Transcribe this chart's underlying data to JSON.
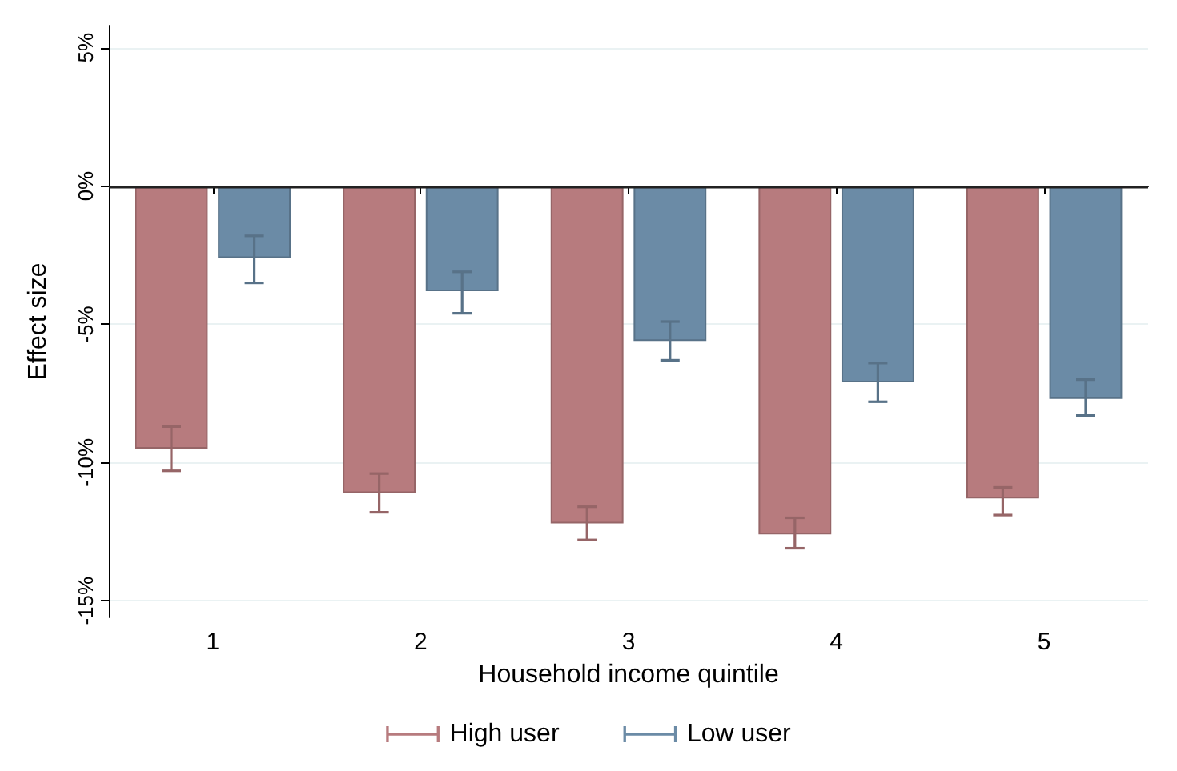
{
  "chart_data": {
    "type": "bar",
    "xlabel": "Household income quintile",
    "ylabel": "Effect size",
    "categories": [
      "1",
      "2",
      "3",
      "4",
      "5"
    ],
    "series": [
      {
        "name": "High user",
        "color": "#b77b7e",
        "values": [
          -9.5,
          -11.1,
          -12.2,
          -12.6,
          -11.3
        ],
        "errors": [
          [
            -10.3,
            -8.7
          ],
          [
            -11.8,
            -10.4
          ],
          [
            -12.8,
            -11.6
          ],
          [
            -13.1,
            -12.0
          ],
          [
            -11.9,
            -10.9
          ]
        ]
      },
      {
        "name": "Low user",
        "color": "#6b8ba6",
        "values": [
          -2.6,
          -3.8,
          -5.6,
          -7.1,
          -7.7
        ],
        "errors": [
          [
            -3.5,
            -1.8
          ],
          [
            -4.6,
            -3.1
          ],
          [
            -6.3,
            -4.9
          ],
          [
            -7.8,
            -6.4
          ],
          [
            -8.3,
            -7.0
          ]
        ]
      }
    ],
    "ylim": [
      -15.6,
      5.8
    ],
    "yticks": [
      {
        "value": 5,
        "label": "5%"
      },
      {
        "value": 0,
        "label": "0%"
      },
      {
        "value": -5,
        "label": "-5%"
      },
      {
        "value": -10,
        "label": "-10%"
      },
      {
        "value": -15,
        "label": "-15%"
      }
    ],
    "ref_lines": [
      {
        "axis": "y",
        "value": 0,
        "label": null,
        "color": "#222222"
      }
    ],
    "grid": "y",
    "legend": "bottom"
  }
}
